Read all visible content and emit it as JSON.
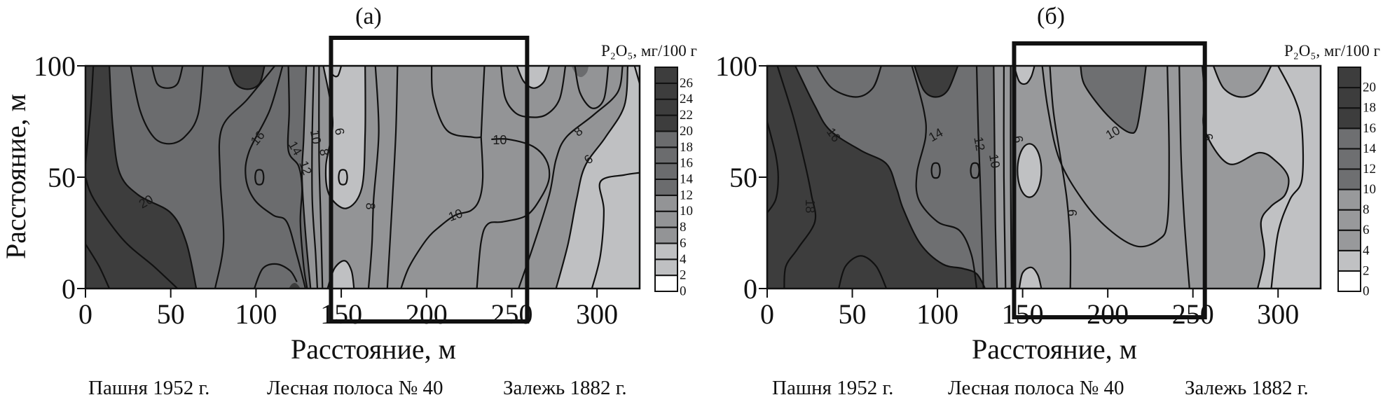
{
  "chart_data": [
    {
      "type": "contour",
      "title": "(а)",
      "xlabel": "Расстояние, м",
      "ylabel": "Расстояние, м",
      "xlim": [
        0,
        325
      ],
      "ylim": [
        0,
        100
      ],
      "xticks": [
        0,
        50,
        100,
        150,
        200,
        250,
        300
      ],
      "yticks": [
        0,
        50,
        100
      ],
      "grid": false,
      "colorbar": {
        "label": "P₂O₅, мг/100 г",
        "levels": [
          0,
          2,
          4,
          6,
          8,
          10,
          12,
          14,
          16,
          18,
          20,
          22,
          24,
          26,
          28
        ],
        "tick_labels": [
          "0",
          "2",
          "4",
          "6",
          "8",
          "10",
          "12",
          "14",
          "16",
          "18",
          "20",
          "22",
          "24",
          "26"
        ],
        "bands": [
          {
            "from": 0,
            "to": 2,
            "color": "#ffffff"
          },
          {
            "from": 2,
            "to": 6,
            "color": "#bfc0c2"
          },
          {
            "from": 6,
            "to": 12,
            "color": "#939496"
          },
          {
            "from": 12,
            "to": 20,
            "color": "#6b6c6e"
          },
          {
            "from": 20,
            "to": 28,
            "color": "#3d3d3d"
          }
        ]
      },
      "contour_labels": [
        {
          "text": "20",
          "x": 35.5,
          "y": 39
        },
        {
          "text": "16",
          "x": 101,
          "y": 67.6
        },
        {
          "text": "14",
          "x": 123,
          "y": 63
        },
        {
          "text": "12",
          "x": 129,
          "y": 68
        },
        {
          "text": "10",
          "x": 135,
          "y": 68
        },
        {
          "text": "8",
          "x": 140,
          "y": 70
        },
        {
          "text": "6",
          "x": 149,
          "y": 70.5
        },
        {
          "text": "8",
          "x": 167,
          "y": 37
        },
        {
          "text": "10",
          "x": 243,
          "y": 66.7
        },
        {
          "text": "10",
          "x": 217,
          "y": 33
        },
        {
          "text": "8",
          "x": 289,
          "y": 70.5
        },
        {
          "text": "6",
          "x": 295,
          "y": 58
        }
      ],
      "highlight_box_x": [
        144,
        259
      ],
      "zones": [
        "Пашня 1952 г.",
        "Лесная полоса № 40",
        "Залежь 1882 г."
      ]
    },
    {
      "type": "contour",
      "title": "(б)",
      "xlabel": "Расстояние, м",
      "ylabel": "",
      "xlim": [
        0,
        325
      ],
      "ylim": [
        0,
        100
      ],
      "xticks": [
        0,
        50,
        100,
        150,
        200,
        250,
        300
      ],
      "yticks": [
        0,
        50,
        100
      ],
      "grid": false,
      "colorbar": {
        "label": "P₂O₅, мг/100 г",
        "levels": [
          0,
          2,
          4,
          6,
          8,
          10,
          12,
          14,
          16,
          18,
          20,
          22
        ],
        "tick_labels": [
          "0",
          "2",
          "4",
          "6",
          "8",
          "10",
          "12",
          "14",
          "16",
          "18",
          "20"
        ],
        "bands": [
          {
            "from": 0,
            "to": 2,
            "color": "#ffffff"
          },
          {
            "from": 2,
            "to": 4,
            "color": "#c0c1c3"
          },
          {
            "from": 4,
            "to": 10,
            "color": "#98999b"
          },
          {
            "from": 10,
            "to": 16,
            "color": "#6e6f71"
          },
          {
            "from": 16,
            "to": 22,
            "color": "#3d3d3d"
          }
        ]
      },
      "contour_labels": [
        {
          "text": "16",
          "x": 39,
          "y": 69
        },
        {
          "text": "14",
          "x": 99,
          "y": 69
        },
        {
          "text": "12",
          "x": 124.6,
          "y": 65
        },
        {
          "text": "10",
          "x": 133.5,
          "y": 66
        },
        {
          "text": "6",
          "x": 147.5,
          "y": 67
        },
        {
          "text": "10",
          "x": 203,
          "y": 70
        },
        {
          "text": "6",
          "x": 259,
          "y": 68
        },
        {
          "text": "6",
          "x": 179,
          "y": 34
        },
        {
          "text": "18",
          "x": 25,
          "y": 37
        }
      ],
      "highlight_box_x": [
        145,
        257
      ],
      "zones": [
        "Пашня 1952 г.",
        "Лесная полоса № 40",
        "Залежь 1882 г."
      ]
    }
  ]
}
